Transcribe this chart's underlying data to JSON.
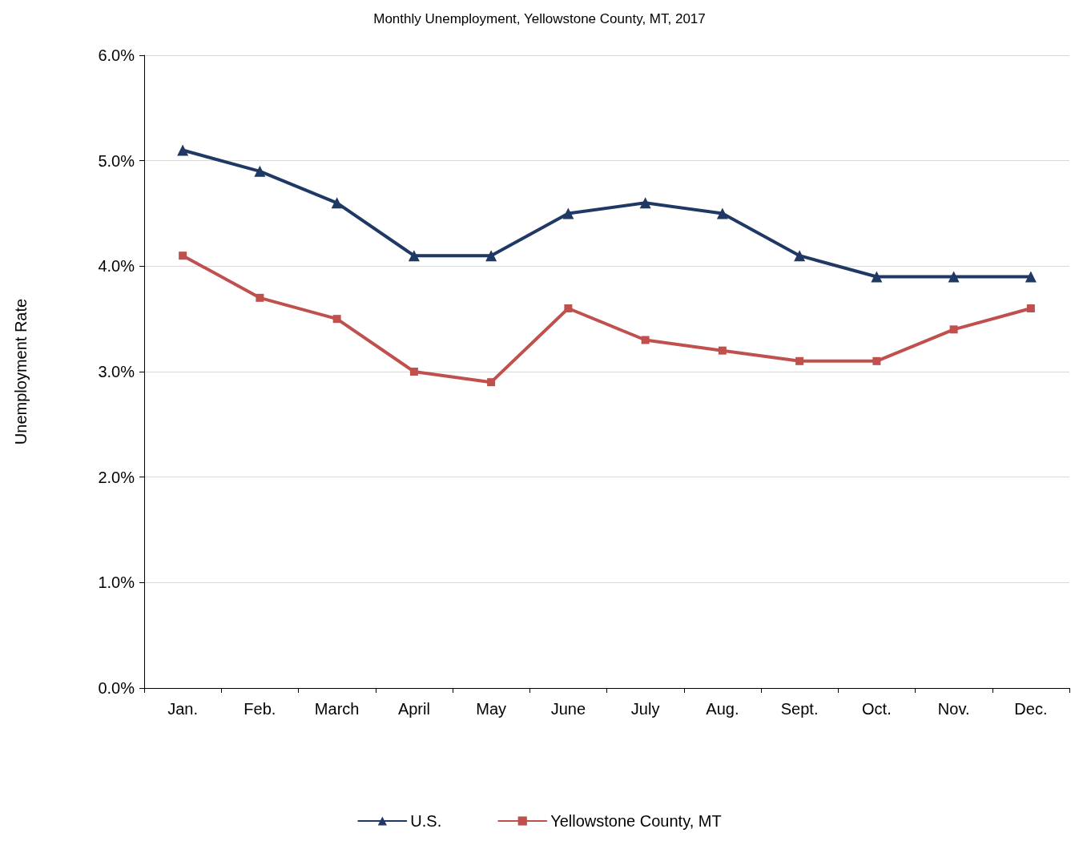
{
  "chart_data": {
    "type": "line",
    "title": "Monthly Unemployment, Yellowstone County, MT, 2017",
    "ylabel": "Unemployment Rate",
    "categories": [
      "Jan.",
      "Feb.",
      "March",
      "April",
      "May",
      "June",
      "July",
      "Aug.",
      "Sept.",
      "Oct.",
      "Nov.",
      "Dec."
    ],
    "series": [
      {
        "name": "U.S.",
        "color": "#1f3864",
        "marker": "triangle",
        "values": [
          5.1,
          4.9,
          4.6,
          4.1,
          4.1,
          4.5,
          4.6,
          4.5,
          4.1,
          3.9,
          3.9,
          3.9
        ]
      },
      {
        "name": "Yellowstone County, MT",
        "color": "#c0504d",
        "marker": "square",
        "values": [
          4.1,
          3.7,
          3.5,
          3.0,
          2.9,
          3.6,
          3.3,
          3.2,
          3.1,
          3.1,
          3.4,
          3.6
        ]
      }
    ],
    "ylim": [
      0,
      6
    ],
    "yticks": [
      {
        "value": 0,
        "label": "0.0%"
      },
      {
        "value": 1,
        "label": "1.0%"
      },
      {
        "value": 2,
        "label": "2.0%"
      },
      {
        "value": 3,
        "label": "3.0%"
      },
      {
        "value": 4,
        "label": "4.0%"
      },
      {
        "value": 5,
        "label": "5.0%"
      },
      {
        "value": 6,
        "label": "6.0%"
      }
    ],
    "grid": "y",
    "legend": "bottom",
    "line_style": "solid"
  }
}
